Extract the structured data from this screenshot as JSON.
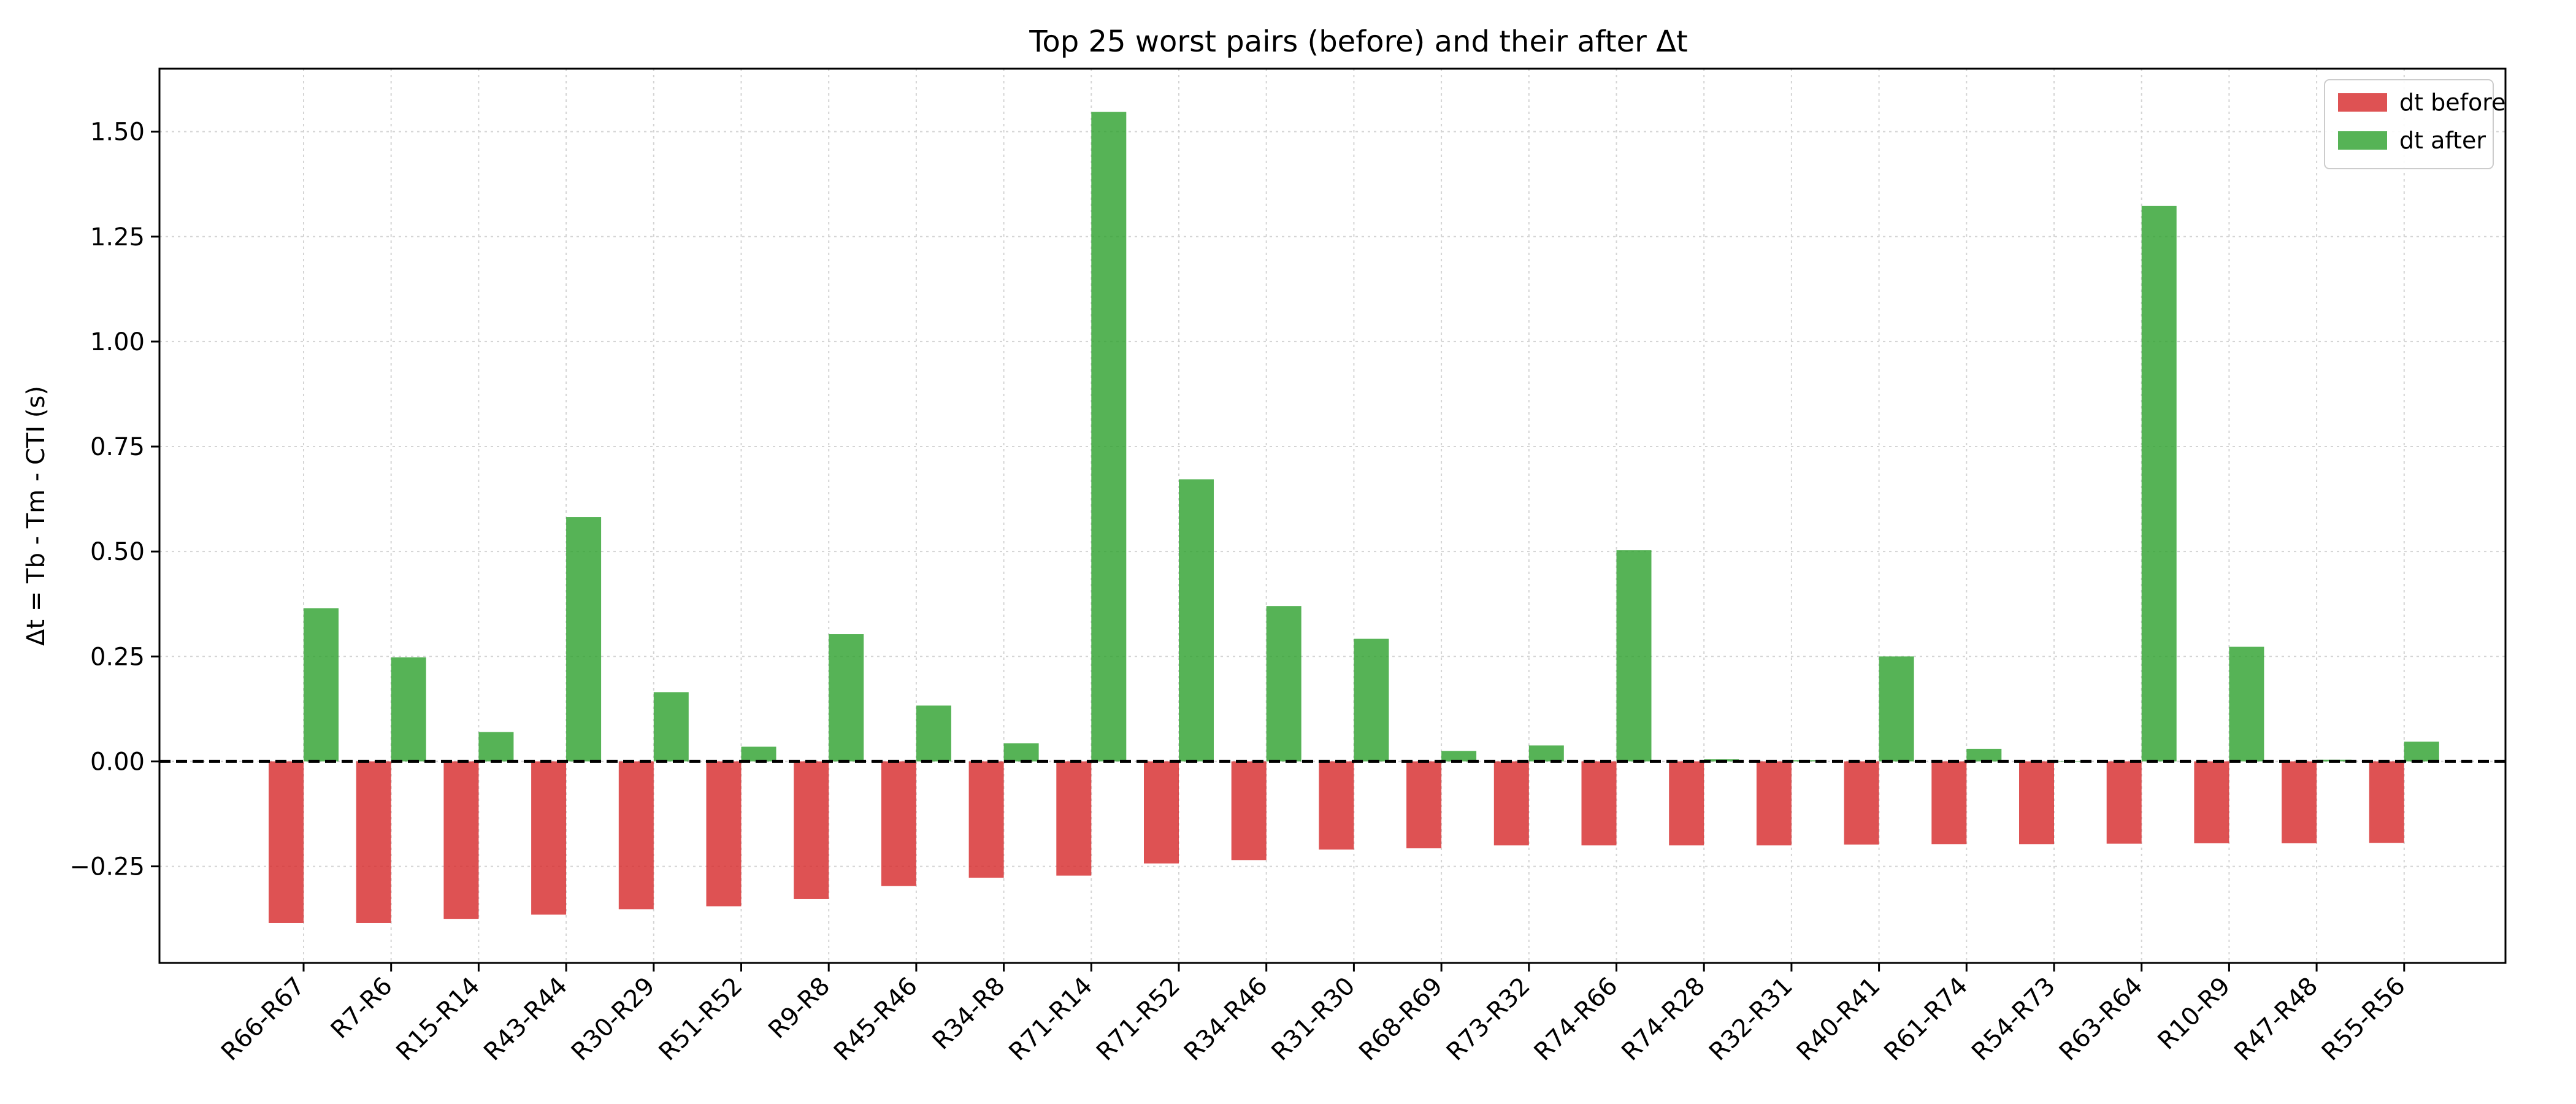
{
  "chart_data": {
    "type": "bar",
    "title": "Top 25 worst pairs (before) and their after Δt",
    "xlabel": "",
    "ylabel": "Δt = Tb - Tm - CTI (s)",
    "ylim": [
      -0.48,
      1.65
    ],
    "yticks": [
      -0.25,
      0.0,
      0.25,
      0.5,
      0.75,
      1.0,
      1.25,
      1.5
    ],
    "ytick_labels": [
      "−0.25",
      "0.00",
      "0.25",
      "0.50",
      "0.75",
      "1.00",
      "1.25",
      "1.50"
    ],
    "grid": true,
    "legend": "top-right",
    "reference_line": 0.0,
    "categories": [
      "R66-R67",
      "R7-R6",
      "R15-R14",
      "R43-R44",
      "R30-R29",
      "R51-R52",
      "R9-R8",
      "R45-R46",
      "R34-R8",
      "R71-R14",
      "R71-R52",
      "R34-R46",
      "R31-R30",
      "R68-R69",
      "R73-R32",
      "R74-R66",
      "R74-R28",
      "R32-R31",
      "R40-R41",
      "R61-R74",
      "R54-R73",
      "R63-R64",
      "R10-R9",
      "R47-R48",
      "R55-R56"
    ],
    "series": [
      {
        "name": "dt before",
        "color": "#d62728",
        "values": [
          -0.385,
          -0.385,
          -0.375,
          -0.365,
          -0.352,
          -0.345,
          -0.328,
          -0.297,
          -0.277,
          -0.272,
          -0.243,
          -0.235,
          -0.21,
          -0.207,
          -0.2,
          -0.2,
          -0.2,
          -0.2,
          -0.198,
          -0.197,
          -0.197,
          -0.196,
          -0.195,
          -0.195,
          -0.194
        ]
      },
      {
        "name": "dt after",
        "color": "#2ca02c",
        "values": [
          0.365,
          0.248,
          0.07,
          0.582,
          0.165,
          0.035,
          0.303,
          0.133,
          0.043,
          1.547,
          0.672,
          0.37,
          0.292,
          0.025,
          0.038,
          0.503,
          0.005,
          0.003,
          0.25,
          0.03,
          0.0,
          1.323,
          0.273,
          0.004,
          0.047
        ]
      }
    ]
  }
}
